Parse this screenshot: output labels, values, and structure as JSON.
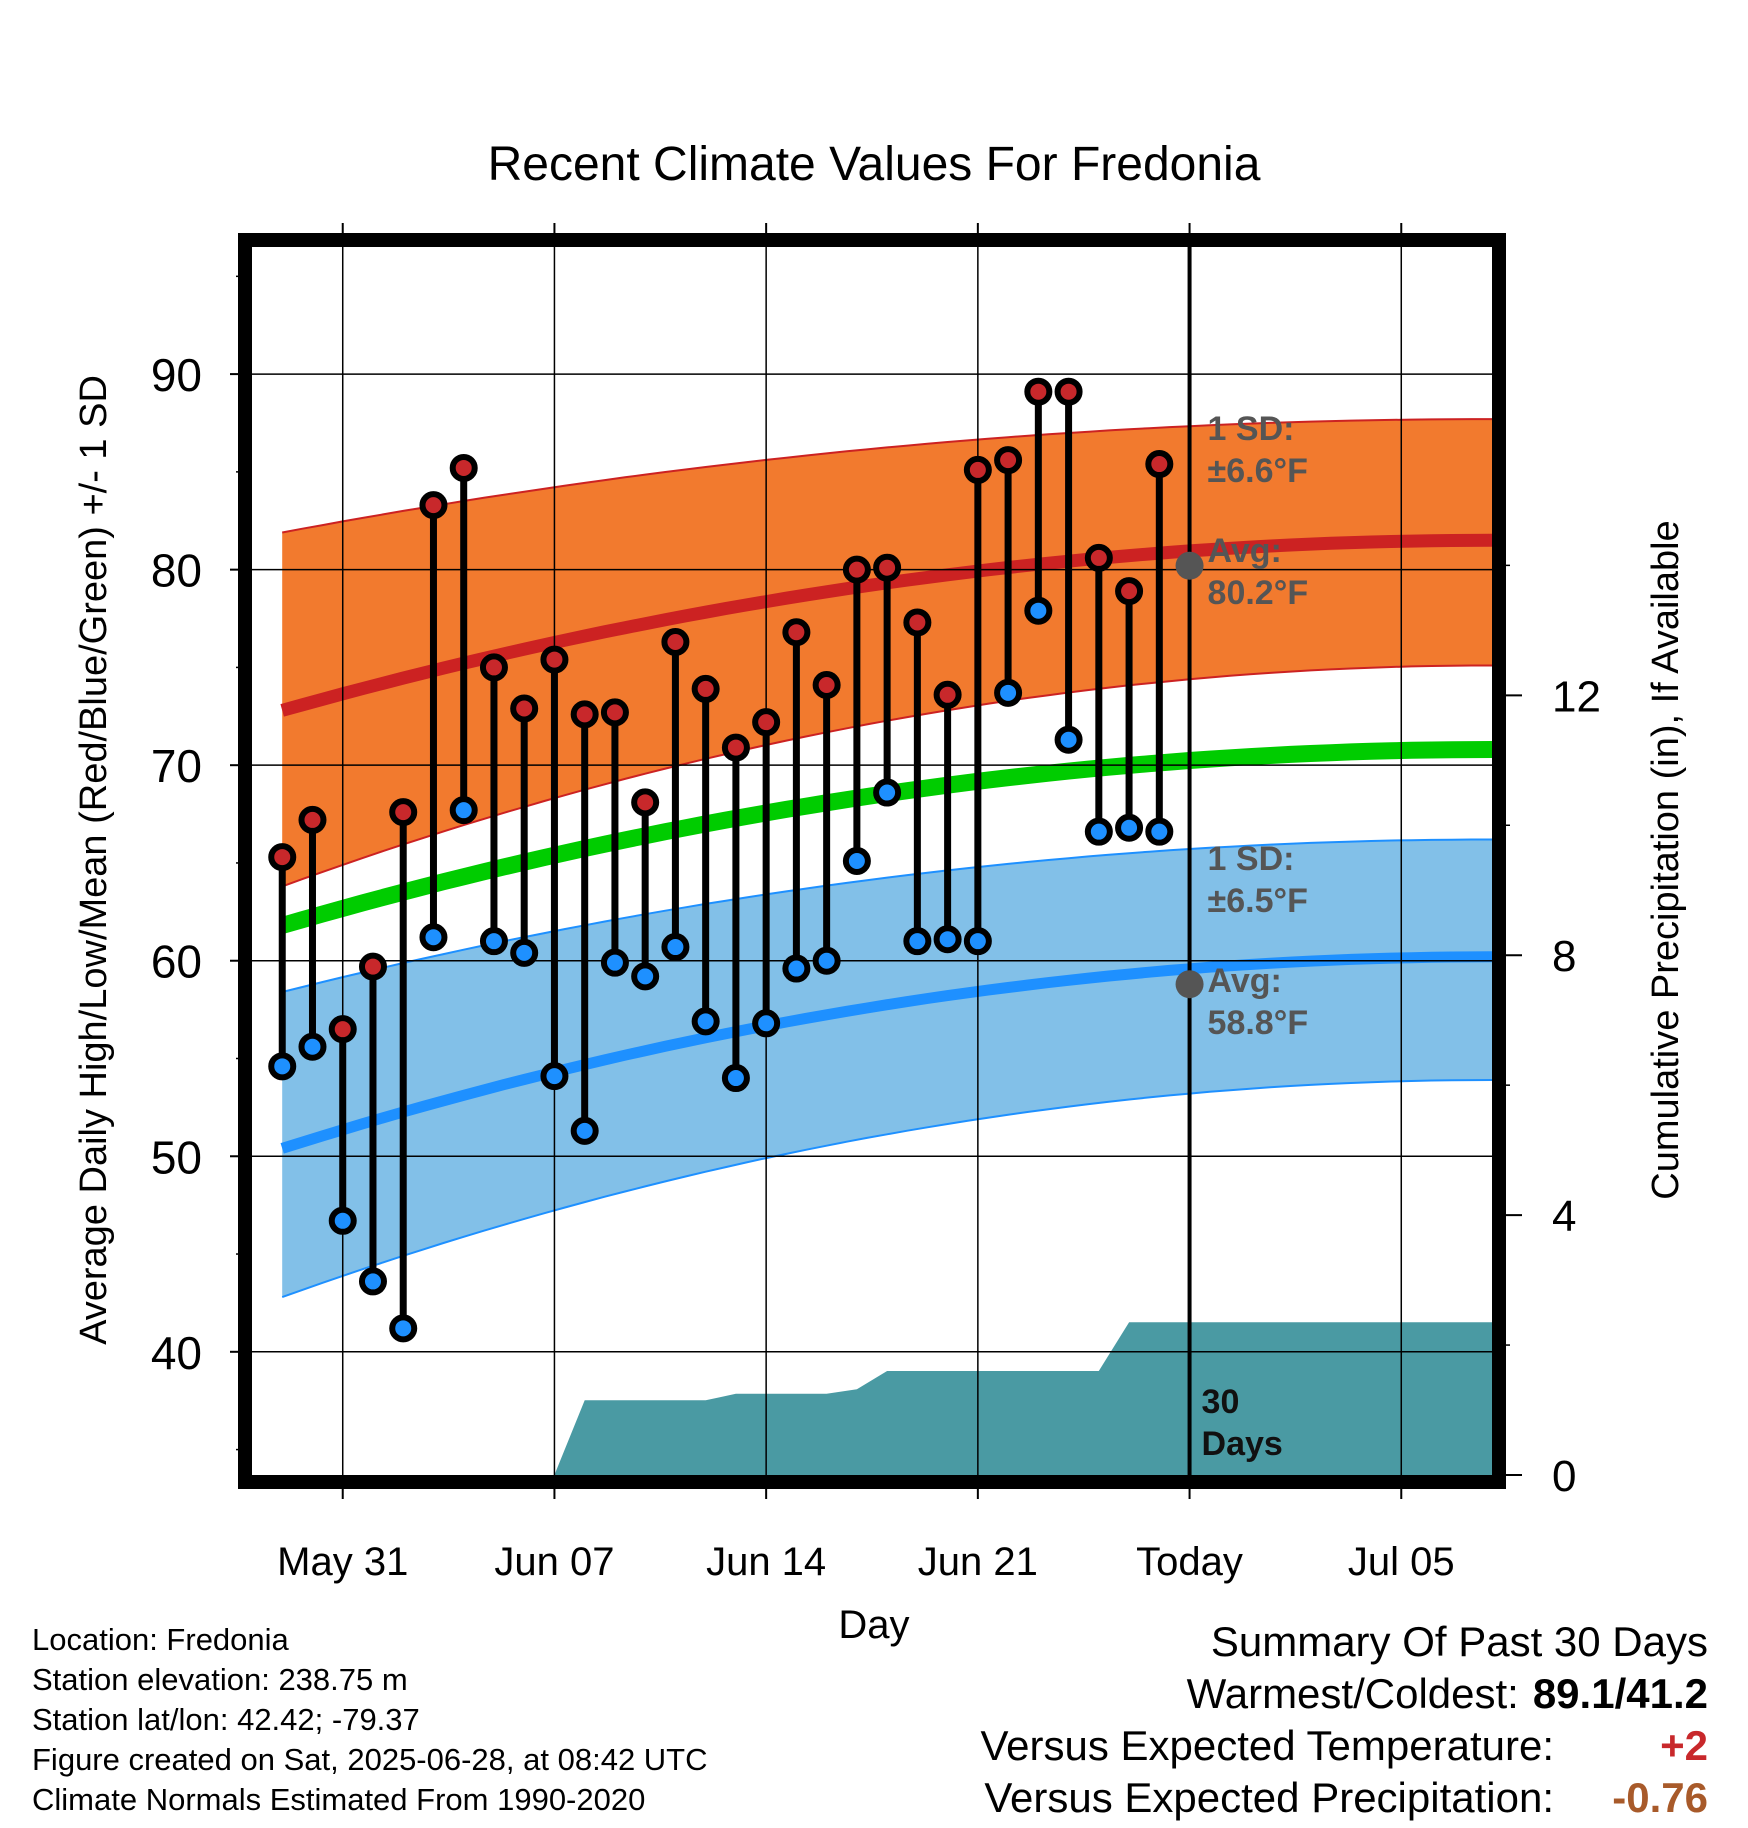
{
  "chart_data": {
    "type": "line",
    "title": "Recent Climate Values For Fredonia",
    "xlabel": "Day",
    "ylabel": "Average Daily High/Low/Mean (Red/Blue/Green) +/- 1 SD",
    "y2label": "Cumulative Precipitation (in), If Available",
    "ylim": [
      33.7,
      96.5
    ],
    "y2lim": [
      0,
      18.9
    ],
    "x_tick_labels": [
      "May 31",
      "Jun 07",
      "Jun 14",
      "Jun 21",
      "Today",
      "Jul 05"
    ],
    "y_tick_labels": [
      "40",
      "50",
      "60",
      "70",
      "80",
      "90"
    ],
    "y2_tick_labels": [
      "0",
      "4",
      "8",
      "12"
    ],
    "grid": true,
    "days": [
      "May 29",
      "May 30",
      "May 31",
      "Jun 01",
      "Jun 02",
      "Jun 03",
      "Jun 04",
      "Jun 05",
      "Jun 06",
      "Jun 07",
      "Jun 08",
      "Jun 09",
      "Jun 10",
      "Jun 11",
      "Jun 12",
      "Jun 13",
      "Jun 14",
      "Jun 15",
      "Jun 16",
      "Jun 17",
      "Jun 18",
      "Jun 19",
      "Jun 20",
      "Jun 21",
      "Jun 22",
      "Jun 23",
      "Jun 24",
      "Jun 25",
      "Jun 26",
      "Jun 27"
    ],
    "series": [
      {
        "name": "High",
        "color": "#c8282b",
        "values": [
          65.3,
          67.2,
          56.5,
          59.7,
          67.6,
          83.3,
          85.2,
          75.0,
          72.9,
          75.4,
          72.6,
          72.7,
          68.1,
          76.3,
          73.9,
          70.9,
          72.2,
          76.8,
          74.1,
          80.0,
          80.1,
          77.3,
          73.6,
          85.1,
          85.6,
          89.1,
          89.1,
          80.6,
          78.9,
          85.4
        ]
      },
      {
        "name": "Low",
        "color": "#1e90ff",
        "values": [
          54.6,
          55.6,
          46.7,
          43.6,
          41.2,
          61.2,
          67.7,
          61.0,
          60.4,
          54.1,
          51.3,
          59.9,
          59.2,
          60.7,
          56.9,
          54.0,
          56.8,
          59.6,
          60.0,
          65.1,
          68.6,
          61.0,
          61.1,
          61.0,
          73.7,
          77.9,
          71.3,
          66.6,
          66.8,
          66.6
        ]
      }
    ],
    "normals": {
      "day_range": [
        "May 29",
        "Jul 08"
      ],
      "high_avg": [
        72.8,
        81.5
      ],
      "high_upper": [
        81.9,
        87.7
      ],
      "high_lower": [
        63.8,
        75.1
      ],
      "mean_avg": [
        61.8,
        70.8
      ],
      "low_avg": [
        50.4,
        60.2
      ],
      "low_upper": [
        58.4,
        66.2
      ],
      "low_lower": [
        42.8,
        53.9
      ]
    },
    "precipitation": {
      "days": [
        "Jun 07",
        "Jun 08",
        "Jun 09",
        "Jun 12",
        "Jun 13",
        "Jun 16",
        "Jun 17",
        "Jun 18",
        "Jun 25",
        "Jun 26",
        "Jul 08"
      ],
      "cumulative": [
        0.0,
        1.15,
        1.15,
        1.15,
        1.25,
        1.25,
        1.32,
        1.6,
        1.6,
        2.35,
        2.35
      ]
    },
    "annotations": {
      "high_sd_label": "1 SD:",
      "high_sd_value": "±6.6°F",
      "high_avg_label": "Avg:",
      "high_avg_value": "80.2°F",
      "low_sd_label": "1 SD:",
      "low_sd_value": "±6.5°F",
      "low_avg_label": "Avg:",
      "low_avg_value": "58.8°F",
      "window_label_1": "30",
      "window_label_2": "Days",
      "today_high_avg": 80.2,
      "today_low_avg": 58.8
    },
    "colors": {
      "high_band": "#f27a2e",
      "high_line": "#cc2222",
      "low_band": "#82c0e8",
      "low_line": "#1e90ff",
      "mean_line": "#00cc00",
      "precip": "#4a9aa3",
      "annotation_text": "#555555"
    }
  },
  "footer": {
    "location": "Location: Fredonia",
    "elevation": "Station elevation: 238.75 m",
    "latlon": "Station lat/lon: 42.42; -79.37",
    "created": "Figure created on Sat, 2025-06-28, at 08:42 UTC",
    "normals": "Climate Normals Estimated From 1990-2020"
  },
  "summary": {
    "title": "Summary Of Past 30 Days",
    "warm_cold_label": "Warmest/Coldest:",
    "warm_cold_value": "89.1/41.2",
    "temp_label": "Versus Expected Temperature:",
    "temp_value": "+2",
    "precip_label": "Versus Expected Precipitation:",
    "precip_value": "-0.76"
  }
}
